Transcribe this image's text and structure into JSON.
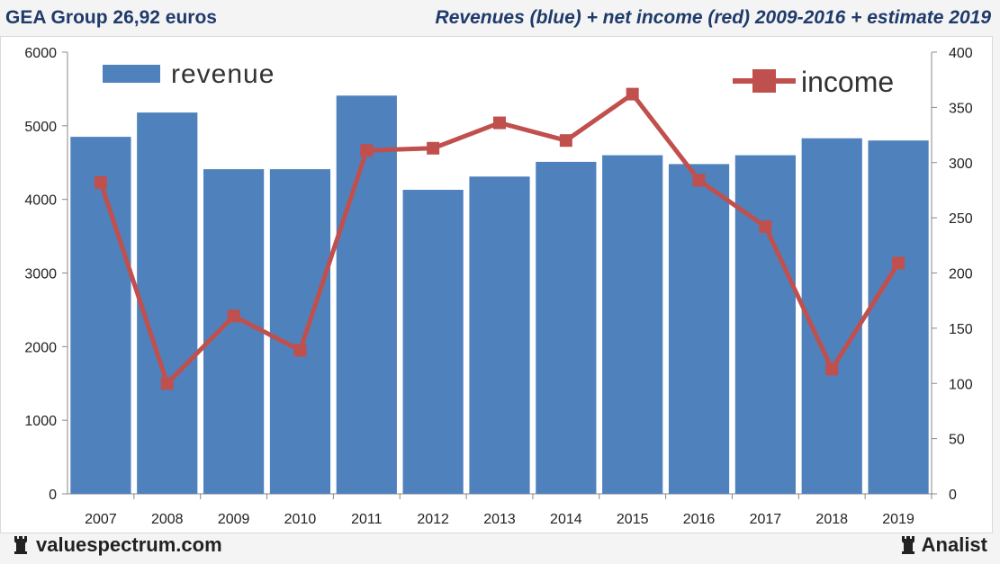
{
  "header": {
    "left_title": "GEA Group 26,92 euros",
    "right_title": "Revenues (blue) + net income (red) 2009-2016 + estimate 2019"
  },
  "footer": {
    "site": "valuespectrum.com",
    "brand": "Analist",
    "site_icon": "rook-icon",
    "brand_icon": "rook-icon"
  },
  "colors": {
    "bar": "#4f81bd",
    "line": "#c0504d",
    "title": "#1f3b6b"
  },
  "chart_data": {
    "type": "bar",
    "categories": [
      "2007",
      "2008",
      "2009",
      "2010",
      "2011",
      "2012",
      "2013",
      "2014",
      "2015",
      "2016",
      "2017",
      "2018",
      "2019"
    ],
    "series": [
      {
        "name": "revenue",
        "type": "bar",
        "axis": "left",
        "values": [
          4850,
          5180,
          4410,
          4410,
          5410,
          4130,
          4310,
          4510,
          4600,
          4480,
          4600,
          4830,
          4800
        ]
      },
      {
        "name": "income",
        "type": "line",
        "axis": "right",
        "values": [
          282,
          100,
          161,
          130,
          311,
          313,
          336,
          320,
          362,
          284,
          242,
          113,
          209
        ]
      }
    ],
    "y_left": {
      "min": 0,
      "max": 6000,
      "ticks": [
        "0",
        "1000",
        "2000",
        "3000",
        "4000",
        "5000",
        "6000"
      ]
    },
    "y_right": {
      "min": 0,
      "max": 400,
      "ticks": [
        "0",
        "50",
        "100",
        "150",
        "200",
        "250",
        "300",
        "350",
        "400"
      ]
    },
    "legend": [
      {
        "label": "revenue",
        "kind": "bar",
        "position": "top-left"
      },
      {
        "label": "income",
        "kind": "line",
        "position": "top-right"
      }
    ],
    "grid": false
  }
}
